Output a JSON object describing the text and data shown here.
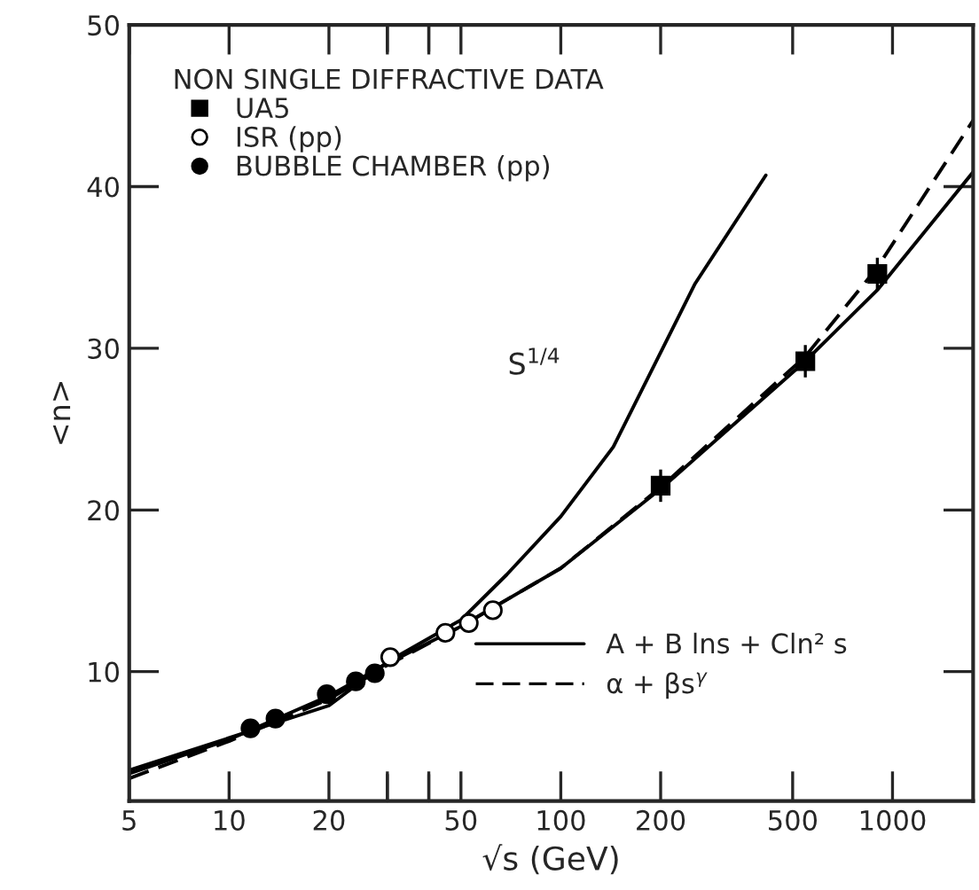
{
  "chart_data": {
    "type": "scatter",
    "xlabel": "√s (GeV)",
    "ylabel": "<n>",
    "legend_title": "NON SINGLE DIFFRACTIVE DATA",
    "log": "x",
    "xlim": [
      5,
      1750
    ],
    "xticks": [
      5,
      10,
      20,
      {
        "value": 30,
        "label": null
      },
      {
        "value": 40,
        "label": null
      },
      50,
      100,
      200,
      500,
      1000
    ],
    "ylim": [
      2,
      50
    ],
    "yticks": [
      10,
      20,
      30,
      40,
      50
    ],
    "grid": false,
    "legend": "top left",
    "series": [
      {
        "name": "UA5",
        "marker": "square",
        "color": "#000000",
        "x": [
          200,
          546,
          900
        ],
        "values": [
          21.5,
          29.2,
          34.6
        ],
        "errors": [
          1,
          1,
          1
        ]
      },
      {
        "name": "ISR (pp)",
        "marker": "circle",
        "color": "#ffffff",
        "x": [
          30.6,
          44.9,
          52.8,
          62.4
        ],
        "values": [
          10.9,
          12.4,
          13.0,
          13.8
        ]
      },
      {
        "name": "BUBBLE CHAMBER (pp)",
        "marker": "circle",
        "color": "#000000",
        "x": [
          11.6,
          13.8,
          19.7,
          24.1,
          27.5
        ],
        "values": [
          6.5,
          7.1,
          8.6,
          9.4,
          9.9
        ]
      },
      {
        "type": "line",
        "line_style": "solid",
        "color": "#000000",
        "x": [
          5,
          10,
          20,
          30,
          50,
          68.7,
          100,
          144,
          254,
          415
        ],
        "values": [
          3.9,
          5.9,
          7.9,
          10.6,
          13.2,
          16.0,
          19.6,
          23.9,
          34.0,
          40.7
        ]
      },
      {
        "name": "A + B lns + Cln² s",
        "type": "line",
        "line_style": "solid",
        "color": "#000000",
        "x": [
          5,
          10,
          20,
          30,
          50,
          100,
          200,
          546,
          900,
          1750
        ],
        "values": [
          3.7,
          5.8,
          8.5,
          10.5,
          12.8,
          16.4,
          21.3,
          29.2,
          33.6,
          40.9
        ]
      },
      {
        "name": "α + βs$^{γ}$",
        "type": "line",
        "line_style": "dashed",
        "color": "#000000",
        "x": [
          5,
          10,
          20,
          30,
          50,
          100,
          200,
          546,
          900,
          1750
        ],
        "values": [
          3.4,
          5.7,
          8.3,
          10.4,
          12.8,
          16.4,
          21.4,
          29.5,
          35.0,
          44.1
        ]
      }
    ],
    "annotations": [
      "S$^{1/4}$"
    ]
  }
}
